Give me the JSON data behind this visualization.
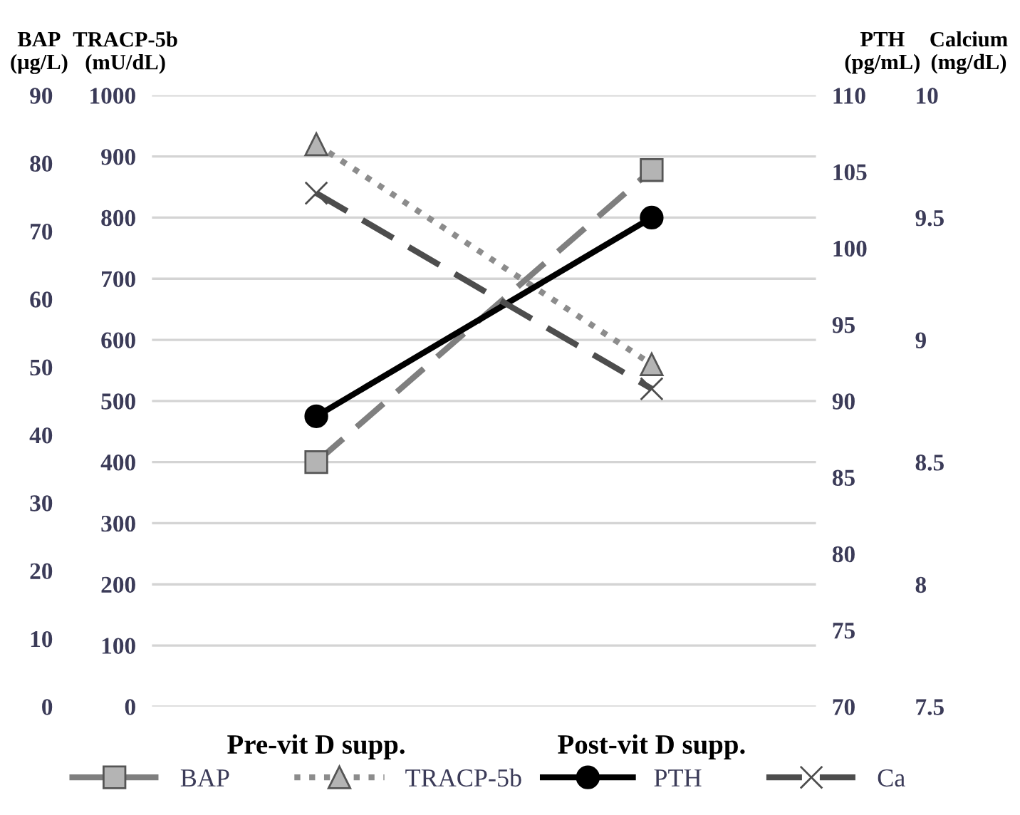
{
  "chart_data": [
    {
      "type": "line",
      "categories": [
        "Pre-vit D supp.",
        "Post-vit D supp."
      ],
      "ylabel": "TRACP-5b\n(mU/dL)",
      "ylim": [
        0,
        1000
      ],
      "yticks": [
        0,
        100,
        200,
        300,
        400,
        500,
        600,
        700,
        800,
        900,
        1000
      ],
      "y2label": "BAP\n(μg/L)",
      "y2lim": [
        0,
        90
      ],
      "y2ticks": [
        0,
        10,
        20,
        30,
        40,
        50,
        60,
        70,
        80,
        90
      ],
      "grid": "y",
      "legend": "bottom",
      "series": [
        {
          "name": "BAP",
          "axis": "y2",
          "color": "#7f7f7f",
          "marker": "square",
          "line_style": "dashed",
          "values": [
            36,
            79
          ]
        },
        {
          "name": "TRACP-5b",
          "color": "#8c8c8c",
          "marker": "triangle",
          "line_style": "dotted",
          "values": [
            920,
            560
          ]
        }
      ]
    },
    {
      "type": "line",
      "categories": [
        null,
        null
      ],
      "tick_labels": "y",
      "ylabel": "PTH\n(pg/mL)",
      "ylim": [
        70,
        110
      ],
      "yticks": [
        70,
        75,
        80,
        85,
        90,
        95,
        100,
        105,
        110
      ],
      "y2label": "Calcium\n(mg/dL)",
      "y2lim": [
        7.5,
        10
      ],
      "y2ticks": [
        7.5,
        8,
        8.5,
        9,
        9.5,
        10
      ],
      "legend": "bottom",
      "series": [
        {
          "name": "PTH",
          "color": "#000000",
          "marker": "circle",
          "line_style": "solid",
          "values": [
            89,
            102
          ]
        },
        {
          "name": "Ca",
          "axis": "y2",
          "color": "#4d4d4d",
          "marker": "cross",
          "line_style": "dashed",
          "values": [
            9.6,
            8.8
          ]
        }
      ]
    }
  ]
}
